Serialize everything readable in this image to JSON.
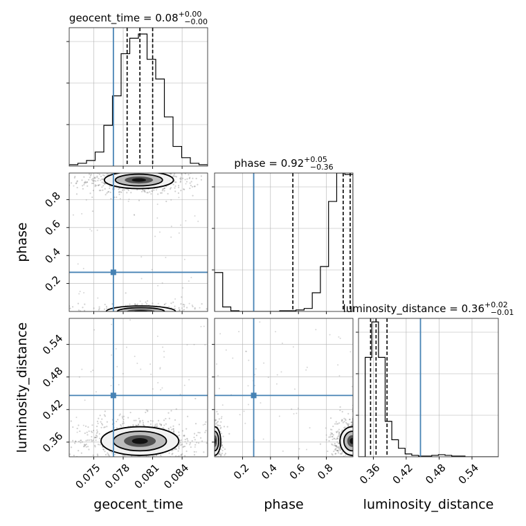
{
  "chart_data": {
    "type": "corner",
    "parameters": [
      {
        "name": "geocent_time",
        "label": "geocent_time",
        "median": "0.08",
        "plus": "+0.00",
        "minus": "−0.00",
        "truth": 0.077,
        "range": [
          0.0725,
          0.0866
        ],
        "ticks": [
          0.075,
          0.078,
          0.081,
          0.084
        ],
        "tick_labels": [
          "0.075",
          "0.078",
          "0.081",
          "0.084"
        ],
        "quantiles": [
          0.0784,
          0.0797,
          0.081
        ]
      },
      {
        "name": "phase",
        "label": "phase",
        "median": "0.92",
        "plus": "+0.05",
        "minus": "−0.36",
        "truth": 0.28,
        "range": [
          0.0,
          0.99
        ],
        "ticks": [
          0.2,
          0.4,
          0.6,
          0.8
        ],
        "tick_labels": [
          "0.2",
          "0.4",
          "0.6",
          "0.8"
        ],
        "quantiles": [
          0.56,
          0.92,
          0.97
        ]
      },
      {
        "name": "luminosity_distance",
        "label": "luminosity_distance",
        "median": "0.36",
        "plus": "+0.02",
        "minus": "−0.01",
        "truth": 0.446,
        "range": [
          0.333,
          0.588
        ],
        "ticks": [
          0.36,
          0.42,
          0.48,
          0.54
        ],
        "tick_labels": [
          "0.36",
          "0.42",
          "0.48",
          "0.54"
        ],
        "quantiles": [
          0.355,
          0.365,
          0.385
        ]
      }
    ],
    "histograms": [
      [
        2,
        4,
        8,
        20,
        58,
        100,
        160,
        182,
        188,
        152,
        124,
        70,
        28,
        12,
        4,
        2
      ],
      [
        52,
        6,
        1,
        0,
        0,
        0,
        0,
        0,
        1,
        1,
        2,
        4,
        25,
        60,
        147,
        185,
        183
      ],
      [
        0,
        140,
        190,
        140,
        50,
        24,
        12,
        4,
        2,
        1,
        1,
        2,
        3,
        2,
        1,
        1,
        0,
        0,
        0,
        0,
        0
      ]
    ],
    "histogram_peak": [
      197,
      185,
      195
    ],
    "density_modes": {
      "time_phase": [
        {
          "x": 0.0796,
          "y": 0.94,
          "sx": 0.0016,
          "sy": 0.028,
          "w": 0.84,
          "clip": "top"
        },
        {
          "x": 0.0798,
          "y": 0.0,
          "sx": 0.0016,
          "sy": 0.018,
          "w": 0.16,
          "clip": "bottom"
        }
      ],
      "time_dist": [
        {
          "x": 0.0797,
          "y": 0.362,
          "sx": 0.0018,
          "sy": 0.012,
          "w": 1.0
        }
      ],
      "phase_dist": [
        {
          "x": 0.985,
          "y": 0.362,
          "sx": 0.04,
          "sy": 0.012,
          "w": 0.8,
          "clip": "right"
        },
        {
          "x": 0.0,
          "y": 0.362,
          "sx": 0.02,
          "sy": 0.012,
          "w": 0.2,
          "clip": "left"
        }
      ]
    },
    "grid": true,
    "colors": {
      "truth": "#4682b4",
      "hist": "#000000",
      "quantile": "#000000",
      "points": "#777777",
      "grid": "#b0b0b0"
    }
  }
}
